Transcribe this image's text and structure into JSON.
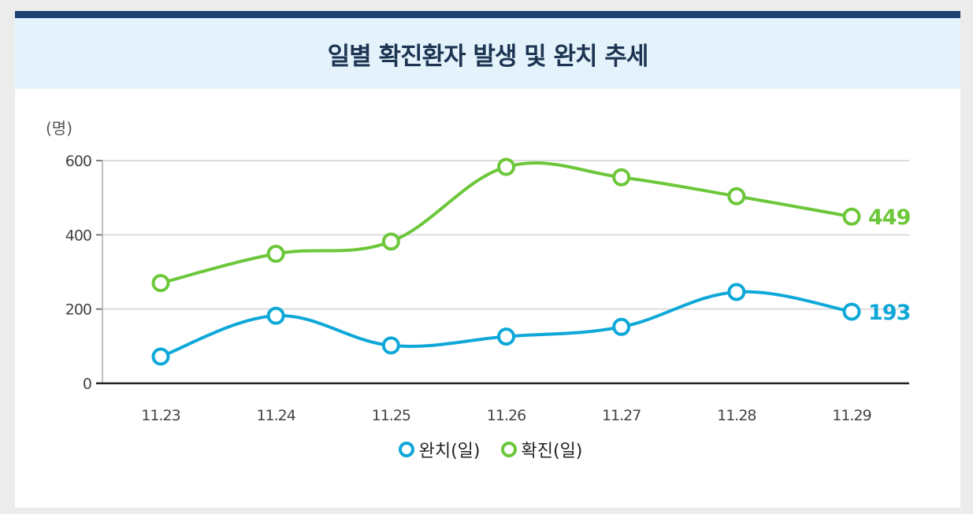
{
  "colors": {
    "top_bar": "#1d4170",
    "header_bg": "#e4f3fb",
    "page_bg": "#ececec",
    "recovered": "#0ea8d8",
    "confirmed": "#6cc73a",
    "grid": "#dcdcdc",
    "axis": "#222222"
  },
  "chart_data": {
    "type": "line",
    "title": "일별 확진환자 발생 및 완치 추세",
    "unit_label": "(명)",
    "x": [
      "11.23",
      "11.24",
      "11.25",
      "11.26",
      "11.27",
      "11.28",
      "11.29"
    ],
    "ylim": [
      0,
      600
    ],
    "yticks": [
      "0",
      "200",
      "400",
      "600"
    ],
    "grid": true,
    "legend_position": "bottom-center",
    "series": [
      {
        "name": "완치(일)",
        "color": "#0ea8d8",
        "values": [
          72,
          182,
          102,
          126,
          152,
          246,
          193
        ],
        "end_label": "193"
      },
      {
        "name": "확진(일)",
        "color": "#6cc73a",
        "values": [
          270,
          349,
          382,
          583,
          555,
          504,
          449
        ],
        "end_label": "449"
      }
    ]
  }
}
